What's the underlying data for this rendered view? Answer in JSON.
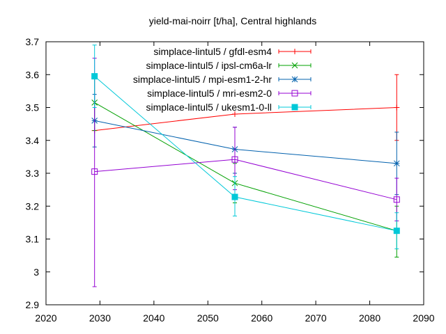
{
  "chart_data": {
    "type": "line",
    "title": "yield-mai-noirr [t/ha], Central highlands",
    "xlabel": "",
    "ylabel": "",
    "xlim": [
      2020,
      2090
    ],
    "ylim": [
      2.9,
      3.7
    ],
    "xticks": [
      "2020",
      "2030",
      "2040",
      "2050",
      "2060",
      "2070",
      "2080",
      "2090"
    ],
    "yticks": [
      "2.9",
      "3",
      "3.1",
      "3.2",
      "3.3",
      "3.4",
      "3.5",
      "3.6",
      "3.7"
    ],
    "grid": false,
    "legend_position": "top-right",
    "series": [
      {
        "name": "simplace-lintul5 / gfdl-esm4",
        "color": "#ff0000",
        "marker": "plus",
        "points": [
          {
            "x": 2029,
            "y": 3.43,
            "lo": 3.43,
            "hi": 3.43
          },
          {
            "x": 2055,
            "y": 3.48,
            "lo": 3.48,
            "hi": 3.48
          },
          {
            "x": 2085,
            "y": 3.5,
            "lo": 3.4,
            "hi": 3.6
          }
        ]
      },
      {
        "name": "simplace-lintul5 / ipsl-cm6a-lr",
        "color": "#00a000",
        "marker": "x",
        "points": [
          {
            "x": 2029,
            "y": 3.515,
            "lo": 3.43,
            "hi": 3.6
          },
          {
            "x": 2055,
            "y": 3.27,
            "lo": 3.21,
            "hi": 3.33
          },
          {
            "x": 2085,
            "y": 3.125,
            "lo": 3.045,
            "hi": 3.2
          }
        ]
      },
      {
        "name": "simplace-lintul5 / mpi-esm1-2-hr",
        "color": "#0060ad",
        "marker": "star",
        "points": [
          {
            "x": 2029,
            "y": 3.46,
            "lo": 3.38,
            "hi": 3.54
          },
          {
            "x": 2055,
            "y": 3.373,
            "lo": 3.3,
            "hi": 3.44
          },
          {
            "x": 2085,
            "y": 3.33,
            "lo": 3.235,
            "hi": 3.425
          }
        ]
      },
      {
        "name": "simplace-lintul5 / mri-esm2-0",
        "color": "#9400d3",
        "marker": "square",
        "points": [
          {
            "x": 2029,
            "y": 3.305,
            "lo": 2.955,
            "hi": 3.65
          },
          {
            "x": 2055,
            "y": 3.342,
            "lo": 3.25,
            "hi": 3.44
          },
          {
            "x": 2085,
            "y": 3.22,
            "lo": 3.155,
            "hi": 3.285
          }
        ]
      },
      {
        "name": "simplace-lintul5 / ukesm1-0-ll",
        "color": "#00c8d8",
        "marker": "filled-square",
        "points": [
          {
            "x": 2029,
            "y": 3.595,
            "lo": 3.5,
            "hi": 3.69
          },
          {
            "x": 2055,
            "y": 3.228,
            "lo": 3.17,
            "hi": 3.29
          },
          {
            "x": 2085,
            "y": 3.125,
            "lo": 3.07,
            "hi": 3.18
          }
        ]
      }
    ]
  }
}
